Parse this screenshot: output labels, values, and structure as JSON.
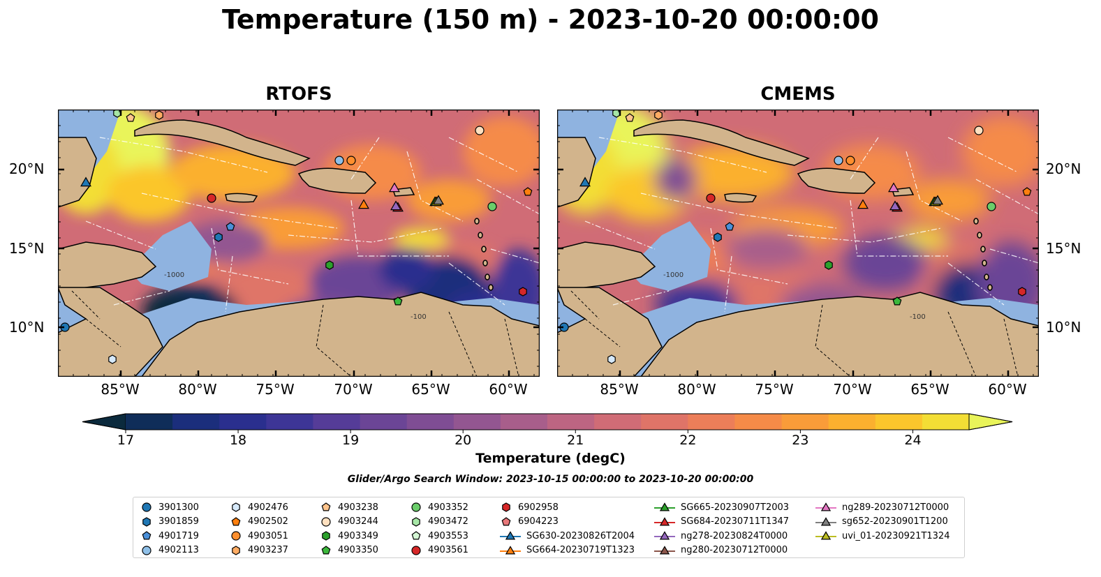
{
  "title": "Temperature (150 m) - 2023-10-20 00:00:00",
  "panels": [
    {
      "id": "rtofs",
      "title": "RTOFS"
    },
    {
      "id": "cmems",
      "title": "CMEMS"
    }
  ],
  "axes": {
    "lat_ticks": [
      "20°N",
      "15°N",
      "10°N"
    ],
    "lon_ticks": [
      "85°W",
      "80°W",
      "75°W",
      "70°W",
      "65°W",
      "60°W"
    ]
  },
  "colorbar": {
    "label": "Temperature (degC)",
    "ticks": [
      "17",
      "18",
      "19",
      "20",
      "21",
      "22",
      "23",
      "24"
    ],
    "range": [
      17,
      24.5
    ],
    "extend": "both",
    "colors": [
      "#0b2a3d",
      "#0f2d59",
      "#1b2e7c",
      "#2a2f8e",
      "#3d3596",
      "#553c98",
      "#6b4596",
      "#7f4d94",
      "#935691",
      "#a85e8b",
      "#bd6582",
      "#d06c76",
      "#df7468",
      "#ec7e59",
      "#f58b48",
      "#f99c39",
      "#fbb02f",
      "#fbc62c",
      "#f3de35",
      "#e9f45a"
    ]
  },
  "contour_labels": [
    "-1000",
    "-100"
  ],
  "search_window": "Glider/Argo Search Window: 2023-10-15 00:00:00 to 2023-10-20 00:00:00",
  "legend": {
    "columns": [
      [
        {
          "label": "3901300",
          "shape": "circle",
          "color": "#1f77b4"
        },
        {
          "label": "3901859",
          "shape": "hexagon",
          "color": "#1f77b4"
        },
        {
          "label": "4901719",
          "shape": "pentagon",
          "color": "#4a90d9"
        },
        {
          "label": "4902113",
          "shape": "circle",
          "color": "#8fc0e8"
        }
      ],
      [
        {
          "label": "4902476",
          "shape": "hexagon",
          "color": "#d6e9fa"
        },
        {
          "label": "4902502",
          "shape": "pentagon",
          "color": "#ff7f0e"
        },
        {
          "label": "4903051",
          "shape": "circle",
          "color": "#ff8f2e"
        },
        {
          "label": "4903237",
          "shape": "hexagon",
          "color": "#ffac63"
        }
      ],
      [
        {
          "label": "4903238",
          "shape": "pentagon",
          "color": "#ffc48c"
        },
        {
          "label": "4903244",
          "shape": "circle",
          "color": "#ffe0bf"
        },
        {
          "label": "4903349",
          "shape": "hexagon",
          "color": "#2ca02c"
        },
        {
          "label": "4903350",
          "shape": "pentagon",
          "color": "#3cb83c"
        }
      ],
      [
        {
          "label": "4903352",
          "shape": "circle",
          "color": "#6acd6a"
        },
        {
          "label": "4903472",
          "shape": "hexagon",
          "color": "#a6e6a6"
        },
        {
          "label": "4903553",
          "shape": "pentagon",
          "color": "#d4f6d4"
        },
        {
          "label": "4903561",
          "shape": "circle",
          "color": "#d62728"
        }
      ],
      [
        {
          "label": "6902958",
          "shape": "hexagon",
          "color": "#d62728"
        },
        {
          "label": "6904223",
          "shape": "pentagon",
          "color": "#e8787a"
        },
        {
          "label": "SG630-20230826T2004",
          "shape": "triangle-line",
          "color": "#1f77b4"
        },
        {
          "label": "SG664-20230719T1323",
          "shape": "triangle-line",
          "color": "#ff7f0e"
        }
      ],
      [
        {
          "label": "SG665-20230907T2003",
          "shape": "triangle-line",
          "color": "#2ca02c"
        },
        {
          "label": "SG684-20230711T1347",
          "shape": "triangle-line",
          "color": "#d62728"
        },
        {
          "label": "ng278-20230824T0000",
          "shape": "triangle-line",
          "color": "#9467bd"
        },
        {
          "label": "ng280-20230712T0000",
          "shape": "triangle-line",
          "color": "#8c564b"
        }
      ],
      [
        {
          "label": "ng289-20230712T0000",
          "shape": "triangle-line",
          "color": "#e377c2"
        },
        {
          "label": "sg652-20230901T1200",
          "shape": "triangle-line",
          "color": "#7f7f7f"
        },
        {
          "label": "uvi_01-20230921T1324",
          "shape": "triangle-line",
          "color": "#bcbd22"
        }
      ]
    ]
  }
}
